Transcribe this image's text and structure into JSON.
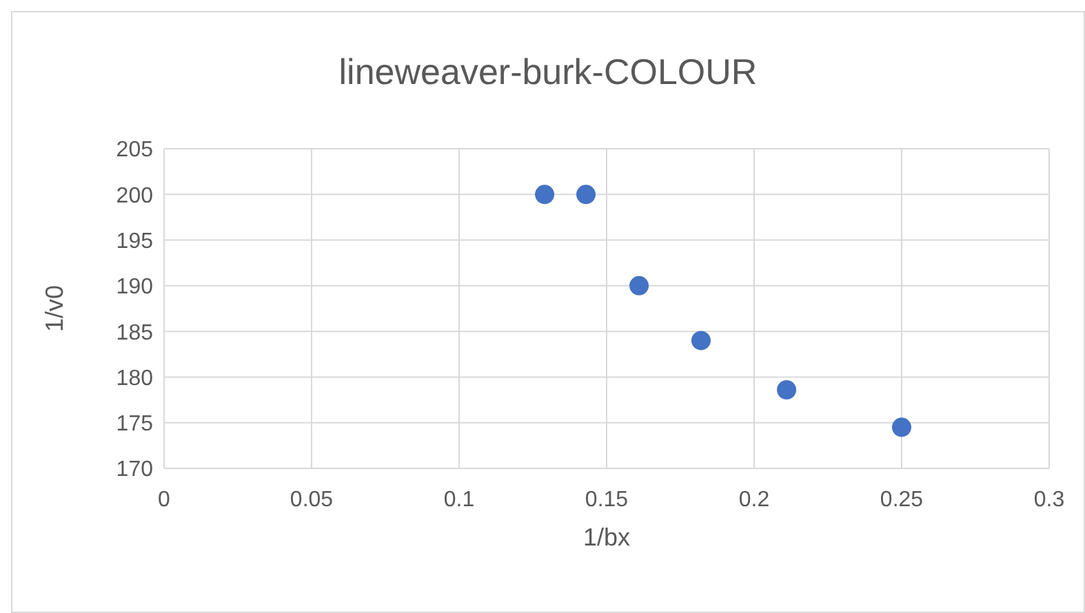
{
  "chart_data": {
    "type": "scatter",
    "title": "lineweaver-burk-COLOUR",
    "xlabel": "1/bx",
    "ylabel": "1/v0",
    "x": [
      0.129,
      0.143,
      0.161,
      0.182,
      0.211,
      0.25
    ],
    "series": [
      {
        "color": "#4472c4",
        "values": [
          200,
          200,
          190,
          184,
          178.6,
          174.5
        ]
      }
    ],
    "xlim": [
      0,
      0.3
    ],
    "xticks": [
      0,
      0.05,
      0.1,
      0.15,
      0.2,
      0.25,
      0.3
    ],
    "ylim": [
      170,
      205
    ],
    "yticks": [
      170,
      175,
      180,
      185,
      190,
      195,
      200,
      205
    ],
    "grid": true,
    "marker": "circle"
  }
}
